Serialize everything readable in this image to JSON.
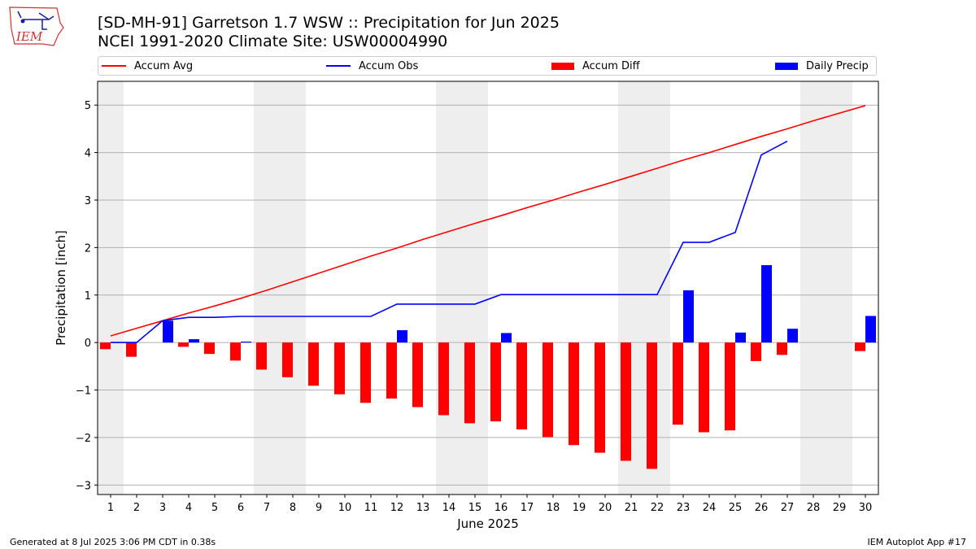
{
  "title_line1": "[SD-MH-91] Garretson 1.7 WSW :: Precipitation for Jun 2025",
  "title_line2": "NCEI 1991-2020 Climate Site: USW00004990",
  "logo_text": "IEM",
  "footer_left": "Generated at 8 Jul 2025 3:06 PM CDT in 0.38s",
  "footer_right": "IEM Autoplot App #17",
  "colors": {
    "avg": "#ff0000",
    "obs": "#0000ff",
    "diff": "#ff0000",
    "daily": "#0000ff",
    "weekend": "#eeeeee",
    "grid": "#b0b0b0"
  },
  "chart_data": {
    "type": "bar",
    "xlabel": "June 2025",
    "ylabel": "Precipitation [inch]",
    "ylim": [
      -3.2,
      5.5
    ],
    "yticks": [
      -3,
      -2,
      -1,
      0,
      1,
      2,
      3,
      4,
      5
    ],
    "ytick_labels": [
      "−3",
      "−2",
      "−1",
      "0",
      "1",
      "2",
      "3",
      "4",
      "5"
    ],
    "categories": [
      "1",
      "2",
      "3",
      "4",
      "5",
      "6",
      "7",
      "8",
      "9",
      "10",
      "11",
      "12",
      "13",
      "14",
      "15",
      "16",
      "17",
      "18",
      "19",
      "20",
      "21",
      "22",
      "23",
      "24",
      "25",
      "26",
      "27",
      "28",
      "29",
      "30"
    ],
    "grid": "horizontal",
    "legend_position": "top",
    "shaded_days": [
      1,
      7,
      8,
      14,
      15,
      21,
      22,
      28,
      29
    ],
    "series": [
      {
        "name": "Accum Avg",
        "kind": "line",
        "color": "#ff0000",
        "values": [
          0.14,
          0.3,
          0.46,
          0.62,
          0.77,
          0.93,
          1.1,
          1.28,
          1.46,
          1.64,
          1.82,
          1.99,
          2.17,
          2.34,
          2.51,
          2.67,
          2.84,
          3.0,
          3.17,
          3.33,
          3.5,
          3.67,
          3.84,
          4.0,
          4.17,
          4.34,
          4.5,
          4.67,
          4.83,
          4.99
        ]
      },
      {
        "name": "Accum Obs",
        "kind": "line",
        "color": "#0000ff",
        "values": [
          0.0,
          0.0,
          0.46,
          0.53,
          0.53,
          0.55,
          0.55,
          0.55,
          0.55,
          0.55,
          0.55,
          0.81,
          0.81,
          0.81,
          0.81,
          1.01,
          1.01,
          1.01,
          1.01,
          1.01,
          1.01,
          1.01,
          2.11,
          2.11,
          2.32,
          3.95,
          4.24,
          null,
          null,
          null
        ]
      },
      {
        "name": "Accum Diff",
        "kind": "bar",
        "color": "#ff0000",
        "values": [
          -0.14,
          -0.3,
          0.0,
          -0.09,
          -0.24,
          -0.38,
          -0.57,
          -0.73,
          -0.91,
          -1.09,
          -1.27,
          -1.18,
          -1.36,
          -1.53,
          -1.7,
          -1.66,
          -1.83,
          -1.99,
          -2.16,
          -2.32,
          -2.49,
          -2.66,
          -1.73,
          -1.89,
          -1.85,
          -0.39,
          -0.26,
          null,
          null,
          -0.18
        ]
      },
      {
        "name": "Daily Precip",
        "kind": "bar",
        "color": "#0000ff",
        "values": [
          0,
          0,
          0.46,
          0.07,
          0,
          0.02,
          0,
          0,
          0,
          0,
          0,
          0.26,
          0,
          0,
          0,
          0.2,
          0,
          0,
          0,
          0,
          0,
          0,
          1.1,
          0,
          0.21,
          1.63,
          0.29,
          0,
          0,
          0.56
        ]
      }
    ]
  }
}
